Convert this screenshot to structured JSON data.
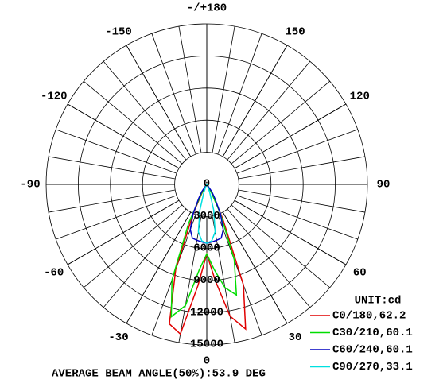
{
  "chart_data": {
    "type": "polar",
    "theta": [
      -40,
      -35,
      -30,
      -25,
      -20,
      -15,
      -10,
      -5,
      0,
      5,
      10,
      15,
      20,
      25,
      30,
      35,
      40
    ],
    "rlim": [
      0,
      15000
    ],
    "rticks": [
      0,
      3000,
      6000,
      9000,
      12000,
      15000
    ],
    "thetaticks": [
      {
        "value": 180,
        "label": "-/+180"
      },
      -150,
      150,
      -120,
      120,
      -90,
      90,
      -60,
      60,
      -30,
      30,
      0
    ],
    "unit_label": "UNIT:cd",
    "annotation": "AVERAGE BEAM ANGLE(50%):53.9 DEG",
    "series": [
      {
        "name": "C0/180,62.2",
        "color": "#e00000",
        "values": [
          0,
          200,
          800,
          3000,
          8500,
          13500,
          14200,
          9500,
          6500,
          9000,
          12500,
          14000,
          10000,
          3500,
          900,
          200,
          0
        ]
      },
      {
        "name": "C30/210,60.1",
        "color": "#00dd00",
        "values": [
          0,
          300,
          1000,
          4000,
          9500,
          12800,
          11500,
          8000,
          6500,
          8000,
          9800,
          10700,
          7500,
          3000,
          800,
          200,
          0
        ]
      },
      {
        "name": "C60/240,60.1",
        "color": "#0000c0",
        "values": [
          0,
          800,
          1500,
          3000,
          4500,
          5200,
          5300,
          5400,
          5500,
          5400,
          5300,
          5200,
          4500,
          3000,
          1500,
          800,
          0
        ]
      },
      {
        "name": "C90/270,33.1",
        "color": "#00e0e0",
        "values": [
          0,
          0,
          0,
          200,
          800,
          2500,
          4500,
          5300,
          5500,
          5300,
          4500,
          2500,
          800,
          200,
          0,
          0,
          0
        ]
      }
    ]
  }
}
